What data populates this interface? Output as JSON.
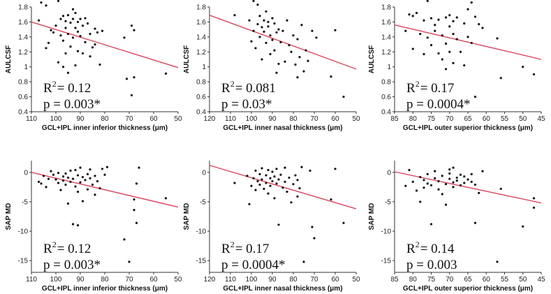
{
  "chart_data": [
    {
      "type": "scatter",
      "xlabel": "GCL+IPL inner inferior thickness (μm)",
      "ylabel": "AULCSF",
      "xlim": [
        110,
        50
      ],
      "ylim": [
        0.4,
        1.8
      ],
      "xticks": [
        110,
        100,
        90,
        80,
        70,
        60,
        50
      ],
      "yticks": [
        0.4,
        0.6,
        0.8,
        1.0,
        1.2,
        1.4,
        1.6,
        1.8
      ],
      "ytick_labels": [
        "0.4",
        "0.6",
        "0.8",
        "1",
        "1.2",
        "1.4",
        "1.6",
        "1.8"
      ],
      "r2_label": "R",
      "r2_sup": "2",
      "r2_value": "= 0.12",
      "p_text": "p = 0.003*",
      "fit_line": [
        [
          110,
          1.6
        ],
        [
          50,
          0.99
        ]
      ],
      "points": [
        [
          107,
          1.62
        ],
        [
          106,
          1.86
        ],
        [
          104,
          1.82
        ],
        [
          104,
          1.25
        ],
        [
          103,
          1.32
        ],
        [
          102,
          1.49
        ],
        [
          101,
          1.46
        ],
        [
          100,
          1.55
        ],
        [
          99,
          1.06
        ],
        [
          99,
          1.88
        ],
        [
          98,
          1.64
        ],
        [
          98,
          1.42
        ],
        [
          97,
          1.68
        ],
        [
          97,
          1.35
        ],
        [
          97,
          1.0
        ],
        [
          96,
          1.61
        ],
        [
          96,
          1.52
        ],
        [
          96,
          1.18
        ],
        [
          95,
          1.69
        ],
        [
          95,
          1.44
        ],
        [
          95,
          0.92
        ],
        [
          94,
          1.59
        ],
        [
          94,
          1.27
        ],
        [
          93,
          1.77
        ],
        [
          93,
          1.64
        ],
        [
          93,
          1.39
        ],
        [
          92,
          1.72
        ],
        [
          92,
          1.52
        ],
        [
          92,
          1.02
        ],
        [
          91,
          1.6
        ],
        [
          91,
          1.47
        ],
        [
          91,
          1.21
        ],
        [
          90,
          1.64
        ],
        [
          90,
          1.41
        ],
        [
          89,
          1.55
        ],
        [
          89,
          1.18
        ],
        [
          88,
          1.65
        ],
        [
          88,
          1.33
        ],
        [
          87,
          1.58
        ],
        [
          86,
          1.44
        ],
        [
          86,
          1.14
        ],
        [
          85,
          1.26
        ],
        [
          84,
          1.51
        ],
        [
          84,
          1.3
        ],
        [
          83,
          1.46
        ],
        [
          82,
          1.03
        ],
        [
          81,
          1.48
        ],
        [
          72,
          1.39
        ],
        [
          71,
          0.84
        ],
        [
          69,
          1.55
        ],
        [
          68,
          1.49
        ],
        [
          69,
          0.62
        ],
        [
          68,
          0.86
        ],
        [
          55,
          0.91
        ]
      ]
    },
    {
      "type": "scatter",
      "xlabel": "GCL+IPL inner nasal thickness (μm)",
      "ylabel": "AULCSF",
      "xlim": [
        120,
        50
      ],
      "ylim": [
        0.4,
        1.8
      ],
      "xticks": [
        120,
        110,
        100,
        90,
        80,
        70,
        60,
        50
      ],
      "yticks": [
        0.4,
        0.6,
        0.8,
        1.0,
        1.2,
        1.4,
        1.6,
        1.8
      ],
      "ytick_labels": [
        "0.4",
        "0.6",
        "0.8",
        "1",
        "1.2",
        "1.4",
        "1.6",
        "1.8"
      ],
      "r2_label": "R",
      "r2_sup": "2",
      "r2_value": "= 0.081",
      "p_text": "p = 0.03*",
      "fit_line": [
        [
          120,
          1.69
        ],
        [
          50,
          0.97
        ]
      ],
      "points": [
        [
          108,
          1.69
        ],
        [
          101,
          1.62
        ],
        [
          100,
          1.34
        ],
        [
          99,
          1.88
        ],
        [
          99,
          1.48
        ],
        [
          98,
          1.25
        ],
        [
          97,
          1.57
        ],
        [
          97,
          1.83
        ],
        [
          96,
          1.68
        ],
        [
          96,
          1.4
        ],
        [
          95,
          1.53
        ],
        [
          95,
          1.1
        ],
        [
          94,
          1.62
        ],
        [
          94,
          1.47
        ],
        [
          93,
          1.74
        ],
        [
          93,
          1.32
        ],
        [
          92,
          1.6
        ],
        [
          92,
          1.54
        ],
        [
          91,
          1.42
        ],
        [
          91,
          1.17
        ],
        [
          90,
          1.65
        ],
        [
          90,
          1.36
        ],
        [
          89,
          1.58
        ],
        [
          89,
          1.22
        ],
        [
          88,
          1.46
        ],
        [
          88,
          0.92
        ],
        [
          87,
          1.5
        ],
        [
          87,
          1.04
        ],
        [
          86,
          1.33
        ],
        [
          85,
          1.48
        ],
        [
          84,
          1.07
        ],
        [
          83,
          1.62
        ],
        [
          82,
          1.29
        ],
        [
          81,
          1.2
        ],
        [
          80,
          1.42
        ],
        [
          79,
          1.03
        ],
        [
          78,
          1.37
        ],
        [
          78,
          0.86
        ],
        [
          77,
          1.13
        ],
        [
          76,
          1.56
        ],
        [
          75,
          0.94
        ],
        [
          74,
          1.22
        ],
        [
          73,
          1.08
        ],
        [
          71,
          1.48
        ],
        [
          69,
          1.39
        ],
        [
          62,
          0.87
        ],
        [
          60,
          1.49
        ],
        [
          56,
          0.6
        ]
      ]
    },
    {
      "type": "scatter",
      "xlabel": "GCL+IPL outer superior thickness (μm)",
      "ylabel": "AULCSF",
      "xlim": [
        85,
        45
      ],
      "ylim": [
        0.4,
        1.8
      ],
      "xticks": [
        85,
        80,
        75,
        70,
        65,
        60,
        55,
        50,
        45
      ],
      "yticks": [
        0.4,
        0.6,
        0.8,
        1.0,
        1.2,
        1.4,
        1.6,
        1.8
      ],
      "ytick_labels": [
        "0.4",
        "0.6",
        "0.8",
        "1",
        "1.2",
        "1.4",
        "1.6",
        "1.8"
      ],
      "r2_label": "R",
      "r2_sup": "2",
      "r2_value": "= 0.17",
      "p_text": "p = 0.0004*",
      "fit_line": [
        [
          85,
          1.56
        ],
        [
          45,
          1.1
        ]
      ],
      "points": [
        [
          82,
          1.48
        ],
        [
          81,
          1.7
        ],
        [
          80,
          1.24
        ],
        [
          80,
          1.68
        ],
        [
          79,
          1.72
        ],
        [
          78,
          1.44
        ],
        [
          77,
          1.62
        ],
        [
          77,
          1.17
        ],
        [
          76,
          1.39
        ],
        [
          76,
          1.88
        ],
        [
          75,
          1.65
        ],
        [
          75,
          1.29
        ],
        [
          74,
          1.48
        ],
        [
          74,
          1.56
        ],
        [
          73,
          1.63
        ],
        [
          73,
          1.18
        ],
        [
          72,
          1.1
        ],
        [
          72,
          1.42
        ],
        [
          71,
          1.66
        ],
        [
          71,
          1.31
        ],
        [
          71,
          0.97
        ],
        [
          70,
          1.69
        ],
        [
          70,
          1.54
        ],
        [
          70,
          1.2
        ],
        [
          69,
          1.44
        ],
        [
          69,
          1.61
        ],
        [
          69,
          1.05
        ],
        [
          68,
          1.37
        ],
        [
          68,
          1.66
        ],
        [
          67,
          1.2
        ],
        [
          66,
          1.02
        ],
        [
          66,
          1.58
        ],
        [
          65,
          1.4
        ],
        [
          65,
          1.77
        ],
        [
          64,
          1.86
        ],
        [
          64,
          1.32
        ],
        [
          63,
          1.67
        ],
        [
          63,
          0.6
        ],
        [
          62,
          1.57
        ],
        [
          61,
          1.52
        ],
        [
          57,
          1.38
        ],
        [
          56,
          0.85
        ],
        [
          50,
          1.0
        ],
        [
          47,
          0.9
        ]
      ]
    },
    {
      "type": "scatter",
      "xlabel": "GCL+IPL inner inferior thickness (μm)",
      "ylabel": "SAP MD",
      "xlim": [
        110,
        50
      ],
      "ylim": [
        -17,
        2
      ],
      "xticks": [
        110,
        100,
        90,
        80,
        70,
        60,
        50
      ],
      "yticks": [
        -15,
        -10,
        -5,
        0
      ],
      "ytick_labels": [
        "-15",
        "-10",
        "-5",
        "0"
      ],
      "r2_label": "R",
      "r2_sup": "2",
      "r2_value": "= 0.12",
      "p_text": "p = 0.003*",
      "fit_line": [
        [
          110,
          0.0
        ],
        [
          50,
          -5.9
        ]
      ],
      "points": [
        [
          107,
          -1.6
        ],
        [
          106,
          -1.9
        ],
        [
          105,
          -0.6
        ],
        [
          104,
          -2.5
        ],
        [
          103,
          -1.1
        ],
        [
          102,
          0.2
        ],
        [
          101,
          -0.4
        ],
        [
          100,
          -1.2
        ],
        [
          99,
          -0.1
        ],
        [
          99,
          -1.8
        ],
        [
          98,
          -3.0
        ],
        [
          97,
          -0.7
        ],
        [
          97,
          -1.4
        ],
        [
          96,
          -0.2
        ],
        [
          96,
          -2.1
        ],
        [
          95,
          -0.9
        ],
        [
          95,
          -5.3
        ],
        [
          94,
          0.3
        ],
        [
          94,
          -1.6
        ],
        [
          93,
          -8.8
        ],
        [
          93,
          -1.1
        ],
        [
          92,
          0.4
        ],
        [
          92,
          -2.4
        ],
        [
          91,
          -0.5
        ],
        [
          91,
          -3.3
        ],
        [
          91,
          -9.0
        ],
        [
          90,
          -1.7
        ],
        [
          90,
          0.8
        ],
        [
          89,
          -0.8
        ],
        [
          89,
          -4.9
        ],
        [
          88,
          -1.3
        ],
        [
          87,
          -0.3
        ],
        [
          87,
          -2.9
        ],
        [
          86,
          0.5
        ],
        [
          86,
          -1.0
        ],
        [
          85,
          -2.1
        ],
        [
          84,
          -0.6
        ],
        [
          84,
          -3.8
        ],
        [
          83,
          -1.5
        ],
        [
          82,
          -2.7
        ],
        [
          81,
          0.6
        ],
        [
          80,
          -0.4
        ],
        [
          79,
          0.9
        ],
        [
          72,
          -11.4
        ],
        [
          70,
          -15.2
        ],
        [
          68,
          -6.4
        ],
        [
          68,
          -4.6
        ],
        [
          67,
          -8.6
        ],
        [
          67,
          -1.9
        ],
        [
          66,
          0.8
        ],
        [
          55,
          -4.4
        ]
      ]
    },
    {
      "type": "scatter",
      "xlabel": "GCL+IPL inner nasal thickness (μm)",
      "ylabel": "SAP MD",
      "xlim": [
        120,
        50
      ],
      "ylim": [
        -17,
        2
      ],
      "xticks": [
        120,
        110,
        100,
        90,
        80,
        70,
        60,
        50
      ],
      "yticks": [
        -15,
        -10,
        -5,
        0
      ],
      "ytick_labels": [
        "-15",
        "-10",
        "-5",
        "0"
      ],
      "r2_label": "R",
      "r2_sup": "2",
      "r2_value": "= 0.17",
      "p_text": "p = 0.0004*",
      "fit_line": [
        [
          120,
          1.2
        ],
        [
          50,
          -6.2
        ]
      ],
      "points": [
        [
          108,
          -1.8
        ],
        [
          102,
          -0.6
        ],
        [
          101,
          -5.4
        ],
        [
          100,
          -2.3
        ],
        [
          99,
          -1.0
        ],
        [
          98,
          0.3
        ],
        [
          98,
          -3.0
        ],
        [
          97,
          -1.5
        ],
        [
          96,
          -0.3
        ],
        [
          96,
          -2.1
        ],
        [
          95,
          0.7
        ],
        [
          95,
          -1.2
        ],
        [
          94,
          -2.8
        ],
        [
          93,
          -0.5
        ],
        [
          93,
          -1.8
        ],
        [
          92,
          0.4
        ],
        [
          92,
          -3.6
        ],
        [
          91,
          -1.0
        ],
        [
          91,
          -2.3
        ],
        [
          90,
          0.1
        ],
        [
          90,
          -1.5
        ],
        [
          89,
          -0.7
        ],
        [
          89,
          -4.4
        ],
        [
          88,
          -1.9
        ],
        [
          88,
          0.6
        ],
        [
          87,
          -1.2
        ],
        [
          87,
          -8.9
        ],
        [
          86,
          -0.4
        ],
        [
          85,
          -2.6
        ],
        [
          84,
          0.8
        ],
        [
          84,
          -1.6
        ],
        [
          83,
          -3.3
        ],
        [
          82,
          -0.9
        ],
        [
          81,
          -5.1
        ],
        [
          80,
          -2.0
        ],
        [
          79,
          -0.5
        ],
        [
          78,
          -1.3
        ],
        [
          78,
          -4.1
        ],
        [
          77,
          -2.7
        ],
        [
          76,
          0.9
        ],
        [
          75,
          -15.2
        ],
        [
          72,
          0.3
        ],
        [
          71,
          -9.3
        ],
        [
          70,
          -11.2
        ],
        [
          62,
          -4.6
        ],
        [
          60,
          0.6
        ],
        [
          56,
          -8.6
        ]
      ]
    },
    {
      "type": "scatter",
      "xlabel": "GCL+IPL outer superior thickness (μm)",
      "ylabel": "SAP MD",
      "xlim": [
        85,
        45
      ],
      "ylim": [
        -17,
        2
      ],
      "xticks": [
        85,
        80,
        75,
        70,
        65,
        60,
        55,
        50,
        45
      ],
      "yticks": [
        -15,
        -10,
        -5,
        0
      ],
      "ytick_labels": [
        "-15",
        "-10",
        "-5",
        "0"
      ],
      "r2_label": "R",
      "r2_sup": "2",
      "r2_value": "= 0.14",
      "p_text": "p = 0.003",
      "fit_line": [
        [
          85,
          0.1
        ],
        [
          45,
          -5.2
        ]
      ],
      "points": [
        [
          82,
          -2.3
        ],
        [
          81,
          0.4
        ],
        [
          80,
          -1.6
        ],
        [
          79,
          -3.1
        ],
        [
          78,
          -0.8
        ],
        [
          78,
          -5.0
        ],
        [
          77,
          -1.3
        ],
        [
          77,
          -2.6
        ],
        [
          76,
          -0.3
        ],
        [
          76,
          -1.9
        ],
        [
          75,
          -8.8
        ],
        [
          75,
          -2.2
        ],
        [
          74,
          -1.0
        ],
        [
          74,
          0.2
        ],
        [
          73,
          -2.9
        ],
        [
          73,
          -1.5
        ],
        [
          72,
          -0.6
        ],
        [
          72,
          -3.7
        ],
        [
          71,
          -2.0
        ],
        [
          71,
          -5.5
        ],
        [
          70,
          0.5
        ],
        [
          70,
          -1.1
        ],
        [
          70,
          -0.2
        ],
        [
          69,
          -1.7
        ],
        [
          69,
          0.8
        ],
        [
          69,
          -2.5
        ],
        [
          68,
          -0.9
        ],
        [
          68,
          -1.4
        ],
        [
          67,
          -0.4
        ],
        [
          67,
          -2.2
        ],
        [
          66,
          -1.8
        ],
        [
          66,
          -0.7
        ],
        [
          65,
          -1.2
        ],
        [
          64,
          -1.6
        ],
        [
          64,
          -0.3
        ],
        [
          63,
          -8.6
        ],
        [
          63,
          -2.1
        ],
        [
          62,
          -3.5
        ],
        [
          61,
          0.2
        ],
        [
          57,
          -15.2
        ],
        [
          56,
          -2.8
        ],
        [
          50,
          -9.2
        ],
        [
          47,
          -6.0
        ],
        [
          47,
          -4.4
        ]
      ]
    }
  ],
  "colors": {
    "fit_line": "#d9455f",
    "points": "#111111",
    "axis": "#333333"
  }
}
